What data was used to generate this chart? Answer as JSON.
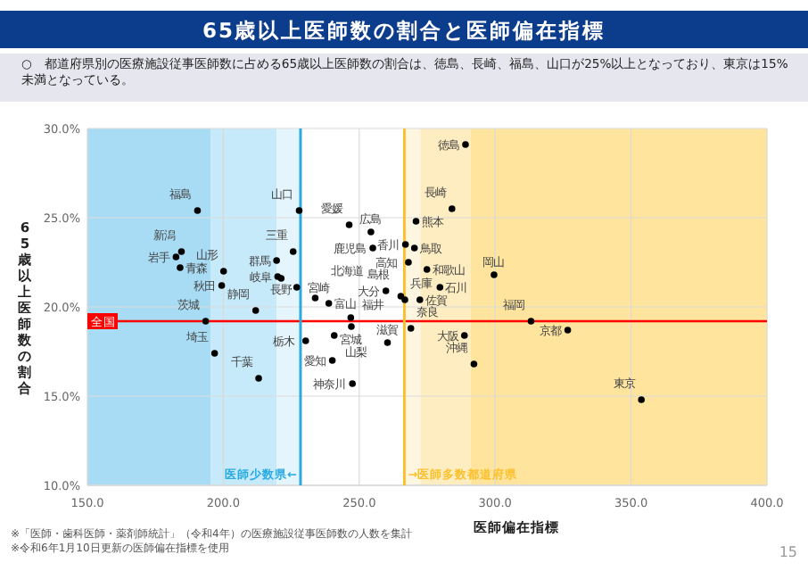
{
  "chart_data": {
    "type": "scatter",
    "title": "65歳以上医師数の割合と医師偏在指標",
    "xlabel": "医師偏在指標",
    "ylabel": "65歳以上医師数の割合",
    "x": [
      190.5,
      184.6,
      182.6,
      184.1,
      200.1,
      199.4,
      193.5,
      196.8,
      213.0,
      211.9,
      227.9,
      225.7,
      219.6,
      220.0,
      221.3,
      227.0,
      233.8,
      238.8,
      246.3,
      254.3,
      255.0,
      246.9,
      240.8,
      230.3,
      247.1,
      240.1,
      247.5,
      260.4,
      269.0,
      259.8,
      265.3,
      266.8,
      267.0,
      270.3,
      268.1,
      274.9,
      279.7,
      272.3,
      270.9,
      284.1,
      289.1,
      299.6,
      313.2,
      326.7,
      288.7,
      292.2,
      353.8
    ],
    "series": [
      {
        "color": "#000000",
        "values": [
          25.4,
          23.1,
          22.8,
          22.2,
          22.0,
          21.2,
          19.2,
          17.4,
          16.0,
          19.8,
          25.4,
          23.1,
          22.6,
          21.7,
          21.6,
          21.1,
          20.5,
          20.2,
          24.6,
          24.2,
          23.3,
          19.4,
          18.4,
          18.1,
          18.9,
          17.0,
          15.7,
          18.0,
          18.8,
          20.9,
          20.6,
          20.4,
          23.5,
          23.3,
          22.5,
          22.1,
          21.1,
          20.4,
          24.8,
          25.5,
          29.1,
          21.8,
          19.2,
          18.7,
          18.4,
          16.8,
          14.8
        ]
      }
    ],
    "marker": "circle",
    "xlim": [
      150,
      400
    ],
    "xticks": [
      {
        "value": 150,
        "label": "150.0"
      },
      {
        "value": 200,
        "label": "200.0"
      },
      {
        "value": 250,
        "label": "250.0"
      },
      {
        "value": 300,
        "label": "300.0"
      },
      {
        "value": 350,
        "label": "350.0"
      },
      {
        "value": 400,
        "label": "400.0"
      }
    ],
    "ylim": [
      10,
      30
    ],
    "yticks": [
      {
        "value": 10,
        "label": "10.0%"
      },
      {
        "value": 15,
        "label": "15.0%"
      },
      {
        "value": 20,
        "label": "20.0%"
      },
      {
        "value": 25,
        "label": "25.0%"
      },
      {
        "value": 30,
        "label": "30.0%"
      }
    ],
    "grid": true,
    "ref_lines": [
      {
        "axis": "y",
        "value": 19.2,
        "label": "全国",
        "color": "#ff0000"
      },
      {
        "axis": "x",
        "value": 228.4,
        "label": "医師少数県←",
        "color": "#29abe2"
      },
      {
        "axis": "x",
        "value": 266.6,
        "label": "→医師多数都道府県",
        "color": "#fbc02d"
      }
    ],
    "bands": [
      {
        "axis": "x",
        "from": 150,
        "to": 195.3,
        "color": "#a8dcf5"
      },
      {
        "axis": "x",
        "from": 195.3,
        "to": 219.6,
        "color": "#c6eafa"
      },
      {
        "axis": "x",
        "from": 219.6,
        "to": 228.4,
        "color": "#e4f5fd"
      },
      {
        "axis": "x",
        "from": 266.6,
        "to": 272.5,
        "color": "#fef6e0"
      },
      {
        "axis": "x",
        "from": 272.5,
        "to": 291.1,
        "color": "#feedc0"
      },
      {
        "axis": "x",
        "from": 291.1,
        "to": 400,
        "color": "#fee49d"
      }
    ],
    "annotations": [
      "○　都道府県別の医療施設従事医師数に占める65歳以上医師数の割合は、徳島、長崎、福島、山口が25%以上となっており、東京は15%未満となっている。",
      {
        "text": "福島",
        "x": 190.5,
        "y": 25.4
      },
      {
        "text": "新潟",
        "x": 184.6,
        "y": 23.1
      },
      {
        "text": "岩手",
        "x": 182.6,
        "y": 22.8
      },
      {
        "text": "青森",
        "x": 184.1,
        "y": 22.2
      },
      {
        "text": "山形",
        "x": 200.1,
        "y": 22.0
      },
      {
        "text": "秋田",
        "x": 199.4,
        "y": 21.2
      },
      {
        "text": "茨城",
        "x": 193.5,
        "y": 19.2
      },
      {
        "text": "埼玉",
        "x": 196.8,
        "y": 17.4
      },
      {
        "text": "千葉",
        "x": 213.0,
        "y": 16.0
      },
      {
        "text": "静岡",
        "x": 211.9,
        "y": 19.8
      },
      {
        "text": "山口",
        "x": 227.9,
        "y": 25.4
      },
      {
        "text": "三重",
        "x": 225.7,
        "y": 23.1
      },
      {
        "text": "群馬",
        "x": 219.6,
        "y": 22.6
      },
      {
        "text": "岐阜",
        "x": 220.0,
        "y": 21.7
      },
      {
        "text": "長野",
        "x": 221.3,
        "y": 21.6
      },
      {
        "text": "宮崎",
        "x": 227.0,
        "y": 21.1
      },
      {
        "text": "北海道",
        "x": 233.8,
        "y": 20.5
      },
      {
        "text": "富山",
        "x": 238.8,
        "y": 20.2
      },
      {
        "text": "愛媛",
        "x": 246.3,
        "y": 24.6
      },
      {
        "text": "広島",
        "x": 254.3,
        "y": 24.2
      },
      {
        "text": "鹿児島",
        "x": 255.0,
        "y": 23.3
      },
      {
        "text": "宮城",
        "x": 246.9,
        "y": 19.4
      },
      {
        "text": "山梨",
        "x": 240.8,
        "y": 18.4
      },
      {
        "text": "栃木",
        "x": 230.3,
        "y": 18.1
      },
      {
        "text": "福井",
        "x": 247.1,
        "y": 18.9
      },
      {
        "text": "愛知",
        "x": 240.1,
        "y": 17.0
      },
      {
        "text": "神奈川",
        "x": 247.5,
        "y": 15.7
      },
      {
        "text": "滋賀",
        "x": 260.4,
        "y": 18.0
      },
      {
        "text": "奈良",
        "x": 269.0,
        "y": 18.8
      },
      {
        "text": "大分",
        "x": 259.8,
        "y": 20.9
      },
      {
        "text": "島根",
        "x": 265.3,
        "y": 20.6
      },
      {
        "text": "兵庫",
        "x": 266.8,
        "y": 20.4
      },
      {
        "text": "香川",
        "x": 267.0,
        "y": 23.5
      },
      {
        "text": "鳥取",
        "x": 270.3,
        "y": 23.3
      },
      {
        "text": "高知",
        "x": 268.1,
        "y": 22.5
      },
      {
        "text": "和歌山",
        "x": 274.9,
        "y": 22.1
      },
      {
        "text": "石川",
        "x": 279.7,
        "y": 21.1
      },
      {
        "text": "佐賀",
        "x": 272.3,
        "y": 20.4
      },
      {
        "text": "熊本",
        "x": 270.9,
        "y": 24.8
      },
      {
        "text": "長崎",
        "x": 284.1,
        "y": 25.5
      },
      {
        "text": "徳島",
        "x": 289.1,
        "y": 29.1
      },
      {
        "text": "岡山",
        "x": 299.6,
        "y": 21.8
      },
      {
        "text": "福岡",
        "x": 313.2,
        "y": 19.2
      },
      {
        "text": "京都",
        "x": 326.7,
        "y": 18.7
      },
      {
        "text": "大阪",
        "x": 288.7,
        "y": 18.4
      },
      {
        "text": "沖縄",
        "x": 292.2,
        "y": 16.8
      },
      {
        "text": "東京",
        "x": 353.8,
        "y": 14.8
      },
      "※「医師・歯科医師・薬剤師統計」（令和4年）の医療施設従事医師数の人数を集計",
      "※令和6年1月10日更新の医師偏在指標を使用",
      "15"
    ]
  }
}
